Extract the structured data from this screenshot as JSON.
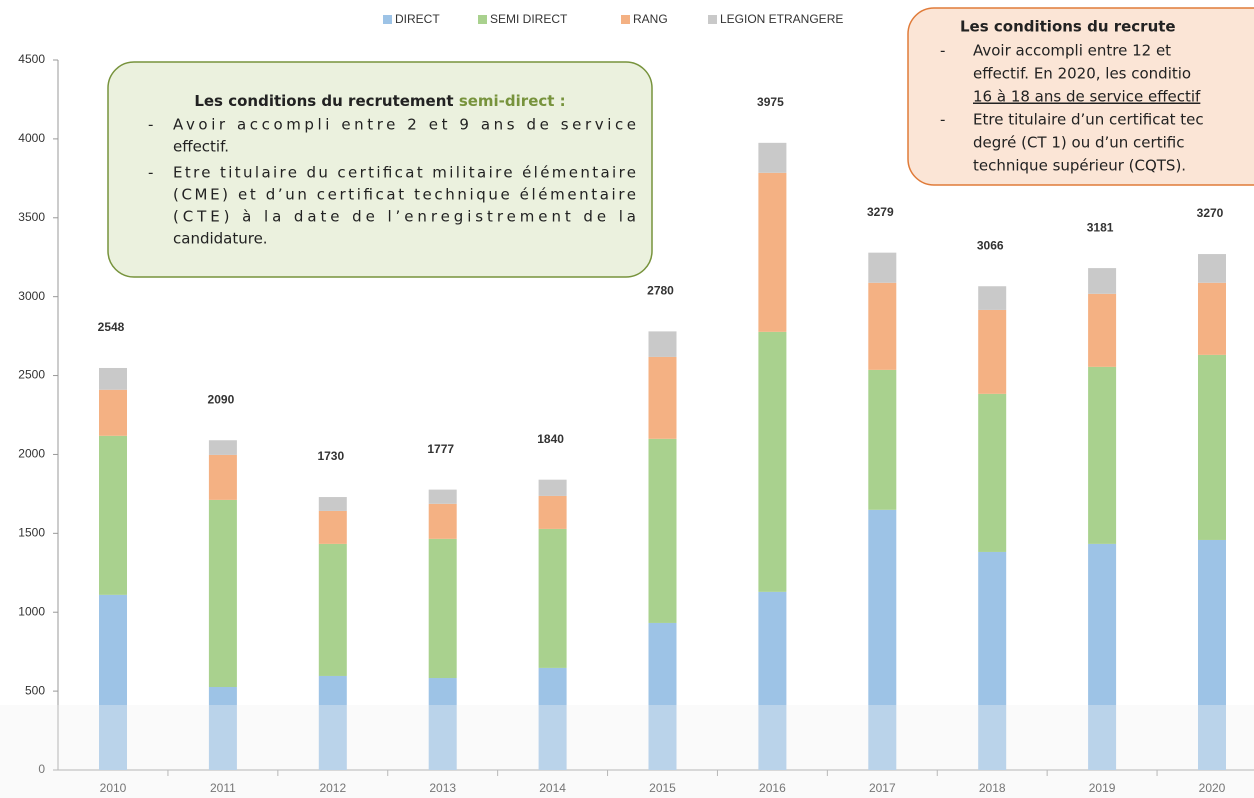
{
  "chart_data": {
    "type": "stacked_bar",
    "categories": [
      "2010",
      "2011",
      "2012",
      "2013",
      "2014",
      "2015",
      "2016",
      "2017",
      "2018",
      "2019",
      "2020"
    ],
    "series": [
      {
        "name": "DIRECT",
        "color": "#9dc3e6",
        "values": [
          1110,
          526,
          596,
          583,
          647,
          932,
          1129,
          1649,
          1382,
          1433,
          1458
        ]
      },
      {
        "name": "SEMI DIRECT",
        "color": "#a9d18e",
        "values": [
          1008,
          1186,
          837,
          882,
          881,
          1167,
          1648,
          887,
          1002,
          1122,
          1173
        ]
      },
      {
        "name": "RANG",
        "color": "#f4b183",
        "values": [
          292,
          285,
          209,
          222,
          209,
          519,
          1008,
          552,
          532,
          463,
          457
        ]
      },
      {
        "name": "LEGION ETRANGERE",
        "color": "#c9c9c9",
        "values": [
          138,
          93,
          88,
          90,
          103,
          162,
          190,
          191,
          150,
          163,
          182
        ]
      }
    ],
    "totals": [
      2548,
      2090,
      1730,
      1777,
      1840,
      2780,
      3975,
      3279,
      3066,
      3181,
      3270
    ],
    "ylim": [
      0,
      4500
    ],
    "yticks": [
      0,
      500,
      1000,
      1500,
      2000,
      2500,
      3000,
      3500,
      4000,
      4500
    ],
    "legend": "top",
    "annotations": [
      {
        "title": "Les conditions du recrutement ",
        "title_highlight": "semi-direct :",
        "bullets": [
          [
            "Avoir accompli entre 2 et 9 ans de service",
            "effectif."
          ],
          [
            "Etre titulaire du certificat militaire élémentaire",
            "(CME) et d’un certificat technique élémentaire",
            "(CTE) à la date de l’enregistrement de la",
            "candidature."
          ]
        ]
      },
      {
        "title": "Les conditions du recrute",
        "bullets": [
          [
            "Avoir accompli entre 12 et",
            "effectif. En 2020, les conditio",
            "16 à 18 ans de service effectif"
          ],
          [
            "Etre titulaire d’un certificat tec",
            "degré (CT 1) ou d’un certific",
            "technique supérieur (CQTS)."
          ]
        ]
      }
    ]
  }
}
